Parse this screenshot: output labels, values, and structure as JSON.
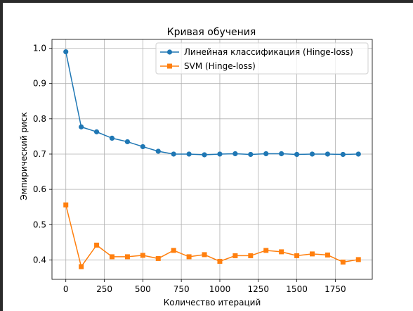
{
  "chart_data": {
    "type": "line",
    "title": "Кривая обучения",
    "xlabel": "Количество итераций",
    "ylabel": "Эмпирический риск",
    "xlim": [
      -90,
      1990
    ],
    "ylim": [
      0.345,
      1.025
    ],
    "xticks": [
      0,
      250,
      500,
      750,
      1000,
      1250,
      1500,
      1750
    ],
    "yticks": [
      0.4,
      0.5,
      0.6,
      0.7,
      0.8,
      0.9,
      1.0
    ],
    "ytick_labels": [
      "0.4",
      "0.5",
      "0.6",
      "0.7",
      "0.8",
      "0.9",
      "1.0"
    ],
    "grid": true,
    "legend_position": "top-right",
    "x": [
      0,
      100,
      200,
      300,
      400,
      500,
      600,
      700,
      800,
      900,
      1000,
      1100,
      1200,
      1300,
      1400,
      1500,
      1600,
      1700,
      1800,
      1900
    ],
    "series": [
      {
        "name": "Линейная классификация (Hinge-loss)",
        "color": "#1f77b4",
        "marker": "circle",
        "values": [
          0.99,
          0.777,
          0.763,
          0.745,
          0.735,
          0.721,
          0.708,
          0.7,
          0.7,
          0.698,
          0.7,
          0.701,
          0.699,
          0.701,
          0.701,
          0.699,
          0.7,
          0.7,
          0.699,
          0.7
        ]
      },
      {
        "name": "SVM (Hinge-loss)",
        "color": "#ff7f0e",
        "marker": "square",
        "values": [
          0.556,
          0.381,
          0.442,
          0.409,
          0.409,
          0.413,
          0.404,
          0.427,
          0.409,
          0.415,
          0.396,
          0.412,
          0.412,
          0.427,
          0.423,
          0.412,
          0.417,
          0.414,
          0.394,
          0.401
        ]
      }
    ]
  }
}
